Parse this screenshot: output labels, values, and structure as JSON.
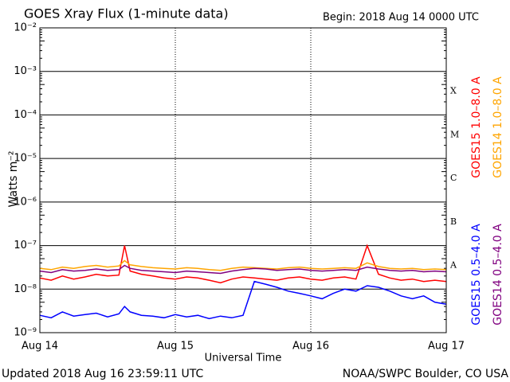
{
  "chart_data": {
    "type": "line",
    "title": "GOES Xray Flux (1-minute data)",
    "subtitle": "Begin:  2018 Aug 14 0000 UTC",
    "footer_left": "Updated 2018 Aug 16 23:59:11 UTC",
    "footer_right": "NOAA/SWPC Boulder, CO USA",
    "x_label": "Universal Time",
    "y_label": "Watts m⁻²",
    "log_scale": true,
    "grid": true,
    "class_labels": [
      "X",
      "M",
      "C",
      "B",
      "A"
    ],
    "xlim": [
      0,
      72
    ],
    "xticks": [
      {
        "value": 0,
        "label": "Aug 14"
      },
      {
        "value": 24,
        "label": "Aug 15"
      },
      {
        "value": 48,
        "label": "Aug 16"
      },
      {
        "value": 72,
        "label": "Aug 17"
      }
    ],
    "ylim": [
      1e-09,
      0.01
    ],
    "yticks": [
      {
        "value": 1e-09,
        "label": "10⁻⁹"
      },
      {
        "value": 1e-08,
        "label": "10⁻⁸"
      },
      {
        "value": 1e-07,
        "label": "10⁻⁷"
      },
      {
        "value": 1e-06,
        "label": "10⁻⁶"
      },
      {
        "value": 1e-05,
        "label": "10⁻⁵"
      },
      {
        "value": 0.0001,
        "label": "10⁻⁴"
      },
      {
        "value": 0.001,
        "label": "10⁻³"
      },
      {
        "value": 0.01,
        "label": "10⁻²"
      }
    ],
    "x": [
      0,
      2,
      4,
      6,
      8,
      10,
      12,
      14,
      15,
      16,
      18,
      20,
      22,
      24,
      26,
      28,
      30,
      32,
      34,
      36,
      38,
      40,
      42,
      44,
      46,
      48,
      50,
      52,
      54,
      56,
      58,
      60,
      62,
      64,
      66,
      68,
      70,
      72
    ],
    "series": [
      {
        "name": "GOES15 1.0–8.0 A",
        "color": "#ff0000",
        "values": [
          1.8e-08,
          1.6e-08,
          2e-08,
          1.7e-08,
          1.9e-08,
          2.2e-08,
          2e-08,
          2.1e-08,
          1e-07,
          2.6e-08,
          2.2e-08,
          2e-08,
          1.8e-08,
          1.7e-08,
          1.9e-08,
          1.8e-08,
          1.6e-08,
          1.4e-08,
          1.7e-08,
          1.9e-08,
          1.8e-08,
          1.7e-08,
          1.6e-08,
          1.8e-08,
          1.9e-08,
          1.7e-08,
          1.6e-08,
          1.8e-08,
          1.9e-08,
          1.7e-08,
          1e-07,
          2.2e-08,
          1.8e-08,
          1.6e-08,
          1.7e-08,
          1.5e-08,
          1.6e-08,
          1.5e-08
        ]
      },
      {
        "name": "GOES14 1.0–8.0 A",
        "color": "#ffa500",
        "values": [
          3e-08,
          2.8e-08,
          3.2e-08,
          3e-08,
          3.3e-08,
          3.5e-08,
          3.2e-08,
          3.4e-08,
          4.5e-08,
          3.6e-08,
          3.3e-08,
          3.1e-08,
          3e-08,
          2.9e-08,
          3.1e-08,
          3e-08,
          2.8e-08,
          2.7e-08,
          3e-08,
          3.2e-08,
          3.1e-08,
          3e-08,
          2.9e-08,
          3.1e-08,
          3.2e-08,
          3e-08,
          2.9e-08,
          3e-08,
          3.1e-08,
          3e-08,
          4e-08,
          3.3e-08,
          3e-08,
          2.9e-08,
          3e-08,
          2.8e-08,
          2.9e-08,
          2.8e-08
        ]
      },
      {
        "name": "GOES15 0.5–4.0 A",
        "color": "#0000ff",
        "values": [
          2.5e-09,
          2.2e-09,
          3e-09,
          2.4e-09,
          2.6e-09,
          2.8e-09,
          2.3e-09,
          2.7e-09,
          4e-09,
          3e-09,
          2.5e-09,
          2.4e-09,
          2.2e-09,
          2.6e-09,
          2.3e-09,
          2.5e-09,
          2.1e-09,
          2.4e-09,
          2.2e-09,
          2.5e-09,
          1.5e-08,
          1.3e-08,
          1.1e-08,
          9e-09,
          8e-09,
          7e-09,
          6e-09,
          8e-09,
          1e-08,
          9e-09,
          1.2e-08,
          1.1e-08,
          9e-09,
          7e-09,
          6e-09,
          7e-09,
          5e-09,
          4.5e-09
        ]
      },
      {
        "name": "GOES14 0.5–4.0 A",
        "color": "#800080",
        "values": [
          2.6e-08,
          2.4e-08,
          2.8e-08,
          2.6e-08,
          2.7e-08,
          2.9e-08,
          2.7e-08,
          2.8e-08,
          3.5e-08,
          3e-08,
          2.7e-08,
          2.6e-08,
          2.5e-08,
          2.4e-08,
          2.6e-08,
          2.5e-08,
          2.4e-08,
          2.3e-08,
          2.6e-08,
          2.8e-08,
          3e-08,
          2.9e-08,
          2.7e-08,
          2.8e-08,
          2.9e-08,
          2.7e-08,
          2.6e-08,
          2.7e-08,
          2.8e-08,
          2.7e-08,
          3.2e-08,
          2.9e-08,
          2.7e-08,
          2.6e-08,
          2.7e-08,
          2.5e-08,
          2.6e-08,
          2.5e-08
        ]
      }
    ]
  }
}
